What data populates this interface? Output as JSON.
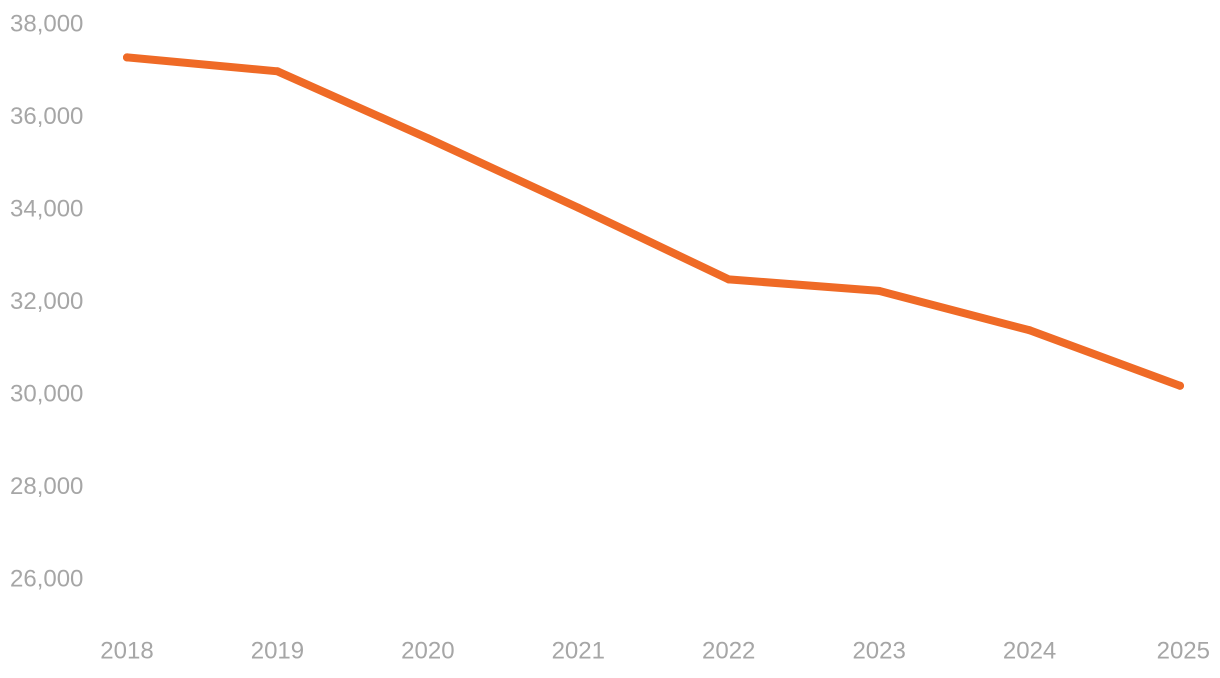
{
  "chart_data": {
    "type": "line",
    "title": "",
    "xlabel": "",
    "ylabel": "",
    "categories": [
      "2018",
      "2019",
      "2020",
      "2021",
      "2022",
      "2023",
      "2024",
      "2025"
    ],
    "series": [
      {
        "values": [
          37300,
          37000,
          35550,
          34050,
          32500,
          32250,
          31400,
          30200
        ],
        "color": "#ef6a26"
      }
    ],
    "y_ticks": [
      26000,
      28000,
      30000,
      32000,
      34000,
      36000,
      38000
    ],
    "y_tick_labels": [
      "26,000",
      "28,000",
      "30,000",
      "32,000",
      "34,000",
      "36,000",
      "38,000"
    ],
    "ylim": [
      25000,
      38000
    ],
    "grid": false,
    "legend": "none",
    "tick_color": "#a6a6a6"
  }
}
